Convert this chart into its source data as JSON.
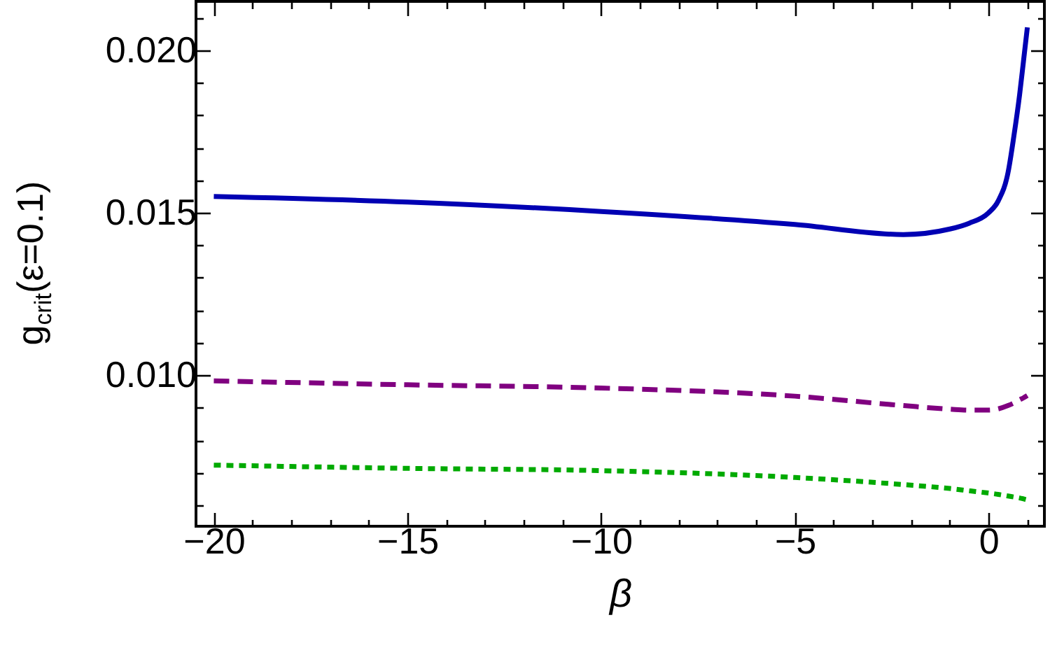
{
  "chart_data": {
    "type": "line",
    "xlabel": "β",
    "ylabel": "g$_{crit}$(ε=0.1)",
    "x": [
      -20,
      -15,
      -10,
      -5,
      -2.2,
      -1,
      -0.5,
      0,
      0.25,
      0.5,
      0.65,
      0.8,
      0.9,
      1
    ],
    "series": [
      {
        "color": "#0000b3",
        "line_style": "solid",
        "values": [
          0.0155,
          0.01533,
          0.01504,
          0.01464,
          0.01433,
          0.0145,
          0.01468,
          0.015,
          0.01537,
          0.01623,
          0.01734,
          0.01863,
          0.01966,
          0.0207
        ]
      },
      {
        "color": "#800080",
        "line_style": "dashed",
        "values": [
          0.00983,
          0.00971,
          0.00961,
          0.00936,
          0.00907,
          0.00896,
          0.00893,
          0.00893,
          0.00897,
          0.00907,
          0.00915,
          0.00925,
          0.00931,
          0.00938
        ]
      },
      {
        "color": "#00aa00",
        "line_style": "dotted",
        "values": [
          0.00724,
          0.00714,
          0.00707,
          0.00686,
          0.00664,
          0.00652,
          0.00645,
          0.00638,
          0.00634,
          0.00629,
          0.00626,
          0.00623,
          0.0062,
          0.00617
        ]
      }
    ],
    "xlim": [
      -20.46,
      1.44
    ],
    "xticks": [
      {
        "value": -20,
        "label": "−20"
      },
      {
        "value": -19,
        "label": null
      },
      {
        "value": -18,
        "label": null
      },
      {
        "value": -17,
        "label": null
      },
      {
        "value": -16,
        "label": null
      },
      {
        "value": -15,
        "label": "−15"
      },
      {
        "value": -14,
        "label": null
      },
      {
        "value": -13,
        "label": null
      },
      {
        "value": -12,
        "label": null
      },
      {
        "value": -11,
        "label": null
      },
      {
        "value": -10,
        "label": "−10"
      },
      {
        "value": -9,
        "label": null
      },
      {
        "value": -8,
        "label": null
      },
      {
        "value": -7,
        "label": null
      },
      {
        "value": -6,
        "label": null
      },
      {
        "value": -5,
        "label": "−5"
      },
      {
        "value": -4,
        "label": null
      },
      {
        "value": -3,
        "label": null
      },
      {
        "value": -2,
        "label": null
      },
      {
        "value": -1,
        "label": null
      },
      0,
      {
        "value": 1,
        "label": null
      }
    ],
    "ylim": [
      0.00536,
      0.0215
    ],
    "yticks": [
      {
        "value": 0.006,
        "label": null
      },
      {
        "value": 0.007,
        "label": null
      },
      {
        "value": 0.008,
        "label": null
      },
      {
        "value": 0.009,
        "label": null
      },
      {
        "value": 0.01,
        "label": "0.010"
      },
      {
        "value": 0.011,
        "label": null
      },
      {
        "value": 0.012,
        "label": null
      },
      {
        "value": 0.013,
        "label": null
      },
      {
        "value": 0.014,
        "label": null
      },
      {
        "value": 0.015,
        "label": "0.015"
      },
      {
        "value": 0.016,
        "label": null
      },
      {
        "value": 0.017,
        "label": null
      },
      {
        "value": 0.018,
        "label": null
      },
      {
        "value": 0.019,
        "label": null
      },
      {
        "value": 0.02,
        "label": "0.020"
      },
      {
        "value": 0.021,
        "label": null
      }
    ],
    "grid": false
  }
}
